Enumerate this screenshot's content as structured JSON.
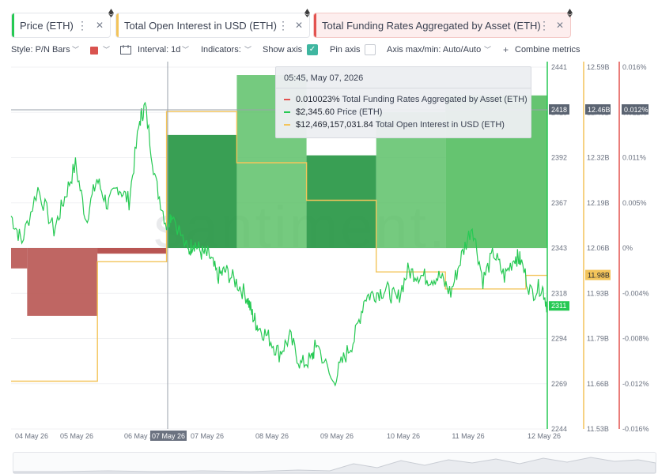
{
  "chips": [
    {
      "label": "Price (ETH)",
      "color": "#26c953",
      "icon": "eth-icon"
    },
    {
      "label": "Total Open Interest in USD (ETH)",
      "color": "#f3c45a",
      "icon": "eth-icon"
    },
    {
      "label": "Total Funding Rates Aggregated by Asset (ETH)",
      "color": "#e3524f",
      "icon": "eth-icon"
    }
  ],
  "toolbar": {
    "style": "Style: P/N Bars",
    "interval": "Interval: 1d",
    "indicators": "Indicators:",
    "show_axis": "Show axis",
    "pin_axis": "Pin axis",
    "axis_maxmin": "Axis max/min: Auto/Auto",
    "combine": "Combine metrics",
    "show_axis_checked": true,
    "pin_axis_checked": false,
    "style_color": "#d9534f"
  },
  "tooltip": {
    "time": "05:45, May 07, 2026",
    "rows": [
      {
        "value": "0.010023%",
        "label": "Total Funding Rates Aggregated by Asset (ETH)",
        "color": "#e3524f"
      },
      {
        "value": "$2,345.60",
        "label": "Price (ETH)",
        "color": "#26c953"
      },
      {
        "value": "$12,469,157,031.84",
        "label": "Total Open Interest in USD (ETH)",
        "color": "#f3c45a"
      }
    ]
  },
  "watermark": "santiment.",
  "chart_data": {
    "type": "line",
    "x_labels": [
      "04 May 26",
      "05 May 26",
      "06 May 26",
      "07 May 26",
      "07 May 26",
      "08 May 26",
      "09 May 26",
      "10 May 26",
      "11 May 26",
      "12 May 26"
    ],
    "crosshair_label": "07 May 26",
    "series": [
      {
        "name": "Price (ETH)",
        "axis_ticks": [
          "2441",
          "2418",
          "2392",
          "2367",
          "2343",
          "2318",
          "2294",
          "2269",
          "2244"
        ],
        "ylim": [
          2244,
          2441
        ],
        "crosshair_tag": "2418",
        "last_tag": "2311",
        "anchors": [
          [
            0.0,
            2360
          ],
          [
            0.02,
            2346
          ],
          [
            0.05,
            2375
          ],
          [
            0.08,
            2352
          ],
          [
            0.1,
            2370
          ],
          [
            0.12,
            2388
          ],
          [
            0.14,
            2358
          ],
          [
            0.16,
            2380
          ],
          [
            0.18,
            2366
          ],
          [
            0.2,
            2376
          ],
          [
            0.22,
            2368
          ],
          [
            0.24,
            2412
          ],
          [
            0.25,
            2420
          ],
          [
            0.27,
            2378
          ],
          [
            0.29,
            2355
          ],
          [
            0.3,
            2362
          ],
          [
            0.33,
            2340
          ],
          [
            0.34,
            2346
          ],
          [
            0.355,
            2340
          ],
          [
            0.37,
            2338
          ],
          [
            0.385,
            2327
          ],
          [
            0.4,
            2330
          ],
          [
            0.42,
            2324
          ],
          [
            0.44,
            2316
          ],
          [
            0.45,
            2306
          ],
          [
            0.46,
            2300
          ],
          [
            0.48,
            2294
          ],
          [
            0.5,
            2285
          ],
          [
            0.52,
            2294
          ],
          [
            0.54,
            2279
          ],
          [
            0.56,
            2282
          ],
          [
            0.57,
            2291
          ],
          [
            0.6,
            2269
          ],
          [
            0.62,
            2282
          ],
          [
            0.64,
            2293
          ],
          [
            0.66,
            2316
          ],
          [
            0.68,
            2318
          ],
          [
            0.7,
            2320
          ],
          [
            0.72,
            2314
          ],
          [
            0.74,
            2330
          ],
          [
            0.76,
            2328
          ],
          [
            0.78,
            2326
          ],
          [
            0.8,
            2327
          ],
          [
            0.82,
            2318
          ],
          [
            0.84,
            2338
          ],
          [
            0.86,
            2355
          ],
          [
            0.88,
            2325
          ],
          [
            0.9,
            2340
          ],
          [
            0.92,
            2327
          ],
          [
            0.94,
            2338
          ],
          [
            0.95,
            2336
          ],
          [
            0.97,
            2318
          ],
          [
            0.99,
            2322
          ],
          [
            1.0,
            2311
          ]
        ]
      },
      {
        "name": "Total Open Interest in USD (ETH)",
        "axis_ticks": [
          "12.59B",
          "12.46B",
          "12.32B",
          "12.19B",
          "12.06B",
          "11.93B",
          "11.79B",
          "11.66B",
          "11.53B"
        ],
        "ylim": [
          11.53,
          12.59
        ],
        "crosshair_tag": "12.46B",
        "last_tag": "11.98B",
        "steps": [
          11.67,
          11.67,
          12.02,
          12.02,
          12.35,
          12.46,
          12.46,
          12.31,
          12.31,
          12.2,
          12.2,
          11.99,
          11.99,
          11.99,
          11.99,
          11.94,
          11.94,
          11.98
        ]
      },
      {
        "name": "Total Funding Rates Aggregated by Asset (ETH)",
        "axis_ticks": [
          "0.016%",
          "0.012%",
          "0.011%",
          "0.005%",
          "0%",
          "-0.004%",
          "-0.008%",
          "-0.012%",
          "-0.016%"
        ],
        "ylim": [
          -0.016,
          0.016
        ],
        "crosshair_tag": "0.012%",
        "bars": [
          {
            "day": "04 May 26",
            "value": -0.0018
          },
          {
            "day": "04 May 26",
            "value": -0.006
          },
          {
            "day": "05 May 26",
            "value": -0.0005
          },
          {
            "day": "06 May 26",
            "value": -0.0006
          },
          {
            "day": "07 May 26",
            "value": 0.01
          },
          {
            "day": "08 May 26",
            "value": 0.0153
          },
          {
            "day": "09 May 26",
            "value": 0.0082
          },
          {
            "day": "10 May 26",
            "value": 0.012
          },
          {
            "day": "11 May 26",
            "value": 0.0135
          }
        ]
      }
    ]
  }
}
